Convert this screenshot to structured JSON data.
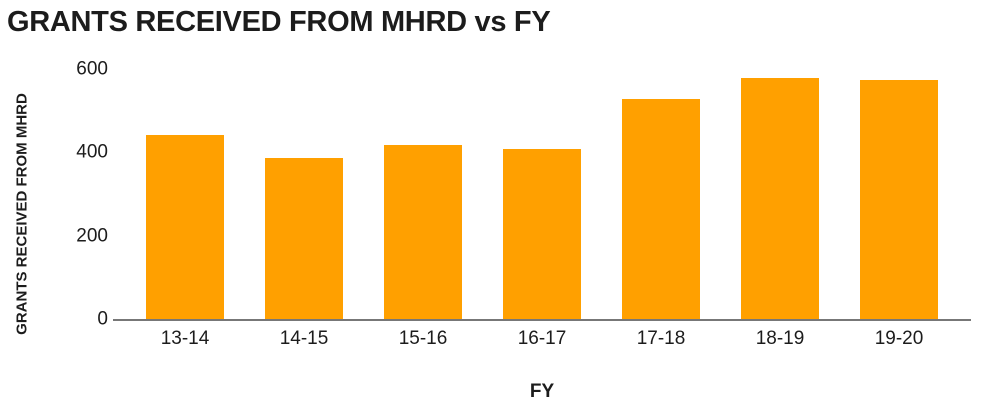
{
  "page": {
    "background": "#FFFFFF"
  },
  "chart_data": {
    "type": "bar",
    "title": "GRANTS RECEIVED FROM MHRD vs FY",
    "xlabel": "FY",
    "ylabel": "GRANTS RECEIVED FROM MHRD",
    "categories": [
      "13-14",
      "14-15",
      "15-16",
      "16-17",
      "17-18",
      "18-19",
      "19-20"
    ],
    "values": [
      445,
      390,
      420,
      410,
      530,
      580,
      575
    ],
    "yticks": [
      0,
      200,
      400,
      600
    ],
    "ylim": [
      0,
      600
    ],
    "bar_color": "#FFA000",
    "axis_line_color": "#777777",
    "text_color": "#1C1C1C",
    "grid": false,
    "legend": false
  }
}
